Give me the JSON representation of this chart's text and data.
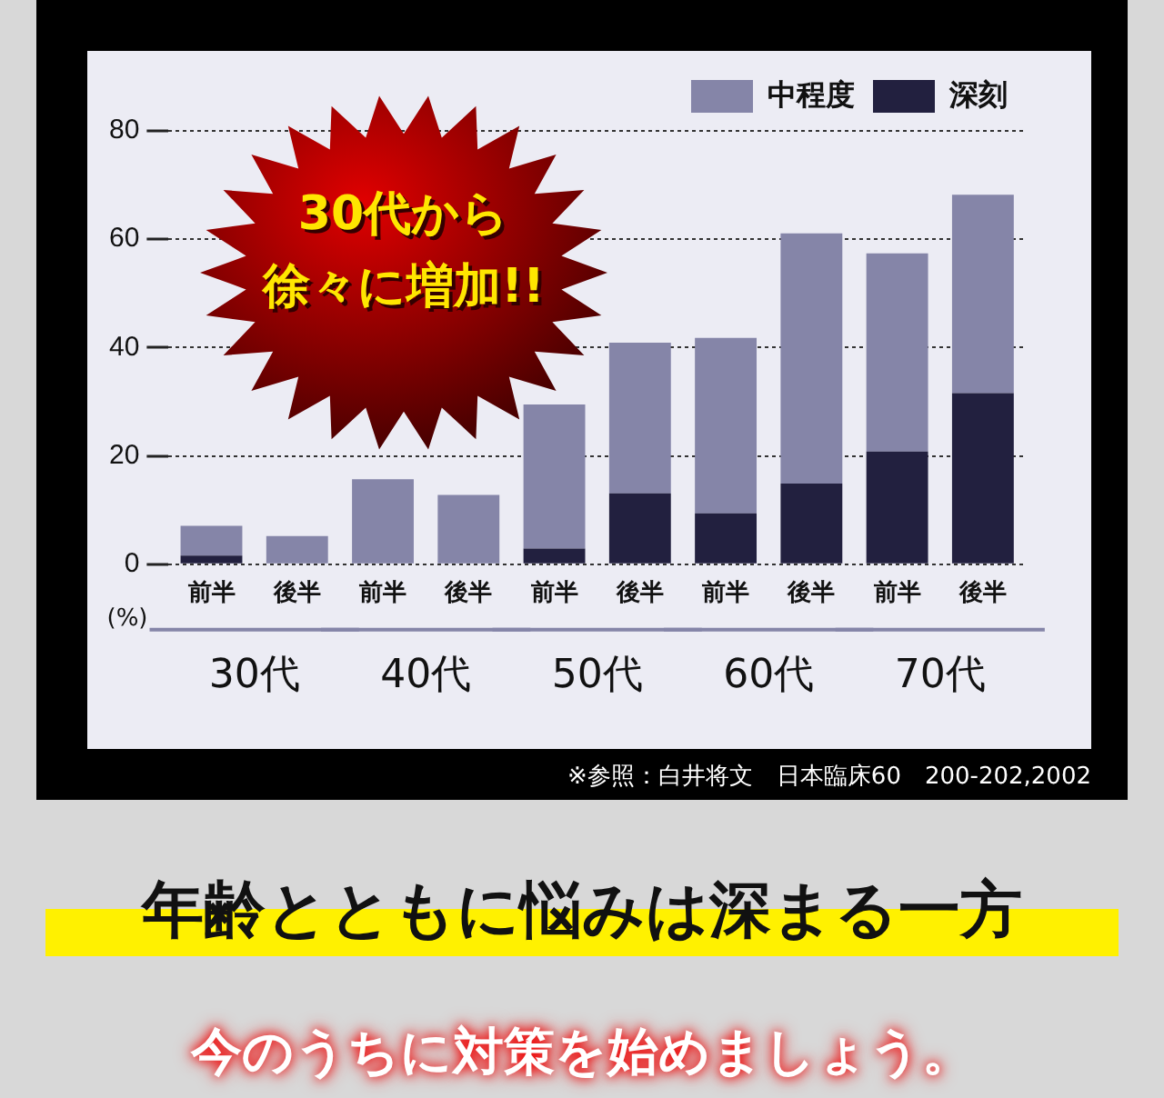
{
  "chart_data": {
    "type": "bar",
    "stacked": true,
    "categories": [
      "前半",
      "後半",
      "前半",
      "後半",
      "前半",
      "後半",
      "前半",
      "後半",
      "前半",
      "後半"
    ],
    "series": [
      {
        "name": "深刻",
        "color": "#22203f",
        "values": [
          1.6,
          0,
          0,
          0,
          2.9,
          13.1,
          9.4,
          14.9,
          20.8,
          31.6
        ]
      },
      {
        "name": "中程度",
        "color": "#8585a8",
        "values": [
          5.5,
          5.2,
          15.7,
          12.8,
          26.6,
          27.8,
          32.4,
          46.2,
          36.6,
          36.6
        ]
      }
    ],
    "ylabel": "(%)",
    "ylim": [
      0,
      80
    ],
    "yticks": [
      0,
      20,
      40,
      60,
      80
    ],
    "grid": "y",
    "legend": "top right",
    "annotations": [
      "30代",
      "40代",
      "50代",
      "60代",
      "70代",
      "30代から",
      "徐々に増加!!",
      "※参照：白井将文　日本臨床60　200-202,2002",
      "年齢とともに悩みは深まる一方",
      "今のうちに対策を始めましょう。"
    ]
  }
}
